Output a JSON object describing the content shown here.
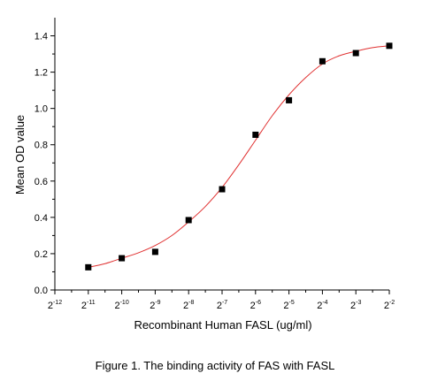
{
  "chart_data": {
    "type": "scatter",
    "ylabel": "Mean OD value",
    "xlabel": "Recombinant Human FASL (ug/ml)",
    "x_scale": "log2",
    "x_ticks": [
      {
        "base": "2",
        "exp": "-12"
      },
      {
        "base": "2",
        "exp": "-11"
      },
      {
        "base": "2",
        "exp": "-10"
      },
      {
        "base": "2",
        "exp": "-9"
      },
      {
        "base": "2",
        "exp": "-8"
      },
      {
        "base": "2",
        "exp": "-7"
      },
      {
        "base": "2",
        "exp": "-6"
      },
      {
        "base": "2",
        "exp": "-5"
      },
      {
        "base": "2",
        "exp": "-4"
      },
      {
        "base": "2",
        "exp": "-3"
      },
      {
        "base": "2",
        "exp": "-2"
      }
    ],
    "y_ticks": [
      "0.0",
      "0.2",
      "0.4",
      "0.6",
      "0.8",
      "1.0",
      "1.2",
      "1.4"
    ],
    "xlim_log2": [
      -12,
      -2
    ],
    "ylim": [
      0.0,
      1.5
    ],
    "grid": false,
    "series": [
      {
        "marker": "square",
        "color": "#000000",
        "x_log2": [
          -11,
          -10,
          -9,
          -8,
          -7,
          -6,
          -5,
          -4,
          -3,
          -2
        ],
        "y": [
          0.125,
          0.175,
          0.21,
          0.385,
          0.555,
          0.855,
          1.045,
          1.26,
          1.305,
          1.345
        ]
      }
    ],
    "fit_curve": {
      "color": "#e03030",
      "x_log2": [
        -11,
        -10.5,
        -10,
        -9.5,
        -9,
        -8.5,
        -8,
        -7.5,
        -7,
        -6.5,
        -6,
        -5.5,
        -5,
        -4.5,
        -4,
        -3.5,
        -3,
        -2.5,
        -2
      ],
      "y": [
        0.125,
        0.145,
        0.175,
        0.205,
        0.245,
        0.3,
        0.375,
        0.46,
        0.565,
        0.69,
        0.825,
        0.96,
        1.075,
        1.17,
        1.245,
        1.29,
        1.315,
        1.335,
        1.345
      ]
    }
  },
  "caption": "Figure 1. The binding activity of FAS with FASL"
}
